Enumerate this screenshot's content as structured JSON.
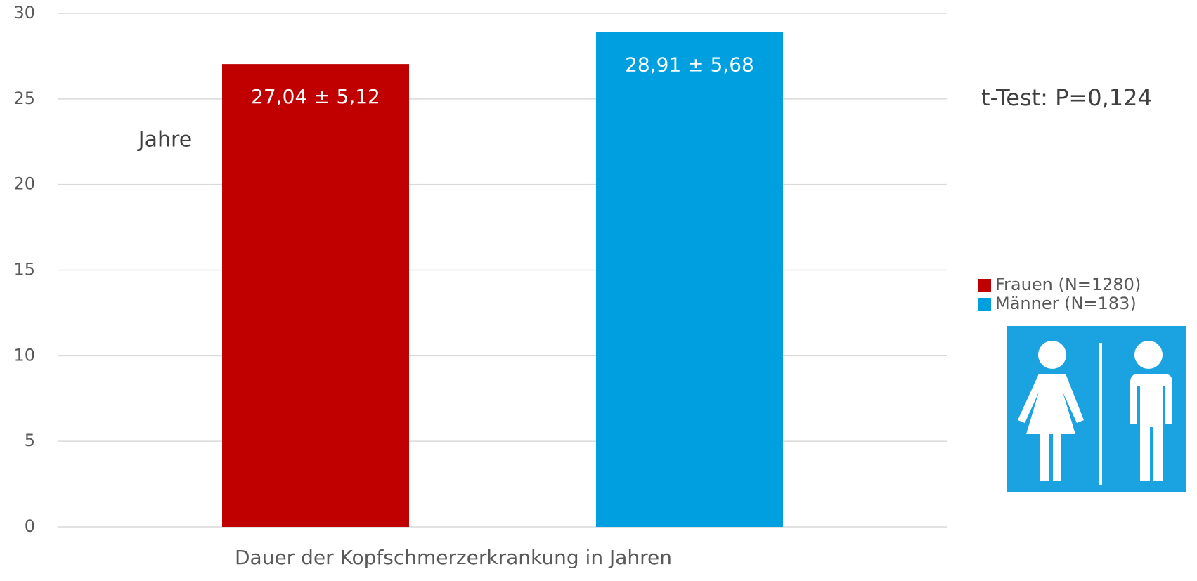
{
  "chart_data": {
    "type": "bar",
    "categories": [
      "Dauer der Kopfschmerzerkrankung in Jahren"
    ],
    "series": [
      {
        "name": "Frauen (N=1280)",
        "color": "#c00000",
        "values": [
          27.04
        ],
        "value_labels": [
          "27,04 ± 5,12"
        ]
      },
      {
        "name": "Männer (N=183)",
        "color": "#00a0e0",
        "values": [
          28.91
        ],
        "value_labels": [
          "28,91 ± 5,68"
        ]
      }
    ],
    "y_label": "Jahre",
    "annotation": "t-Test: P=0,124",
    "ylim": [
      0,
      30
    ],
    "yticks": [
      0,
      5,
      10,
      15,
      20,
      25,
      30
    ],
    "grid": true,
    "legend": "right"
  }
}
